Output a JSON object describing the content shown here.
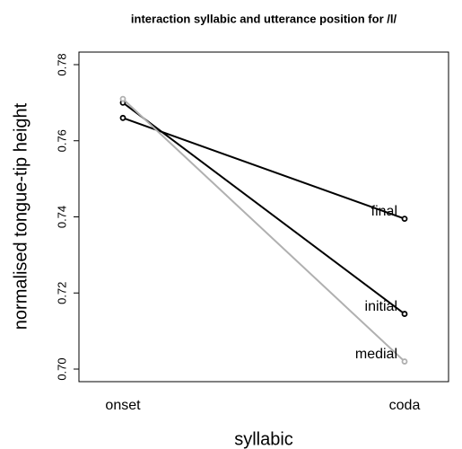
{
  "chart_data": {
    "type": "line",
    "title": "interaction syllabic and utterance position for /l/",
    "xlabel": "syllabic",
    "ylabel": "normalised tongue-tip height",
    "categories": [
      "onset",
      "coda"
    ],
    "series": [
      {
        "name": "final",
        "color": "#000000",
        "values": [
          0.766,
          0.7395
        ]
      },
      {
        "name": "initial",
        "color": "#000000",
        "values": [
          0.77,
          0.7145
        ]
      },
      {
        "name": "medial",
        "color": "#b0b0b0",
        "values": [
          0.771,
          0.702
        ]
      }
    ],
    "ylim": [
      0.6967,
      0.7833
    ],
    "yticks": [
      {
        "value": 0.7,
        "label": "0.70"
      },
      0.72,
      0.74,
      0.76,
      0.78
    ],
    "grid": false
  }
}
